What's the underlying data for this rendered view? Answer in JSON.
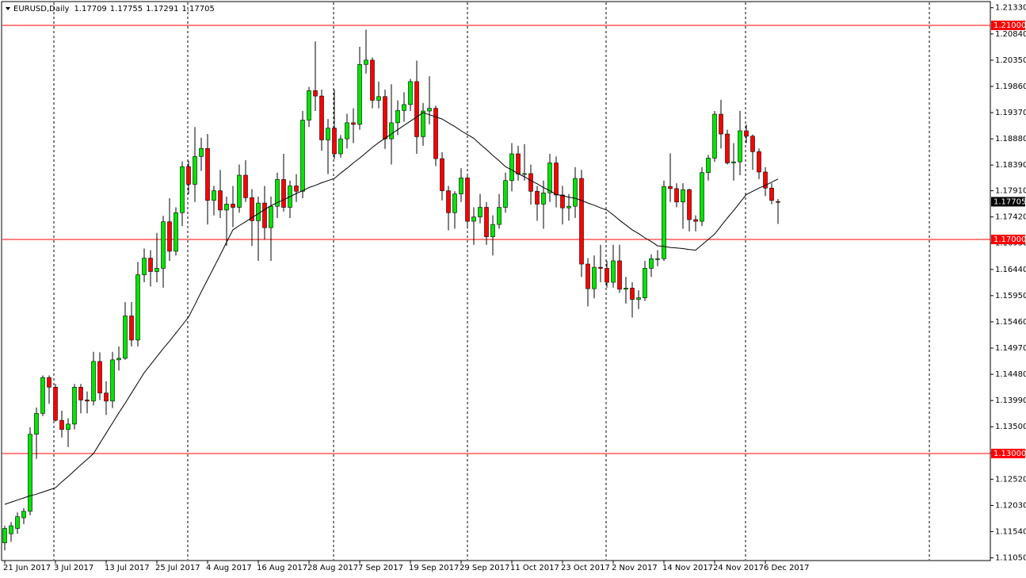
{
  "chart_data": {
    "type": "candlestick",
    "symbol": "EURUSD,Daily",
    "header_ohlc": [
      1.17709,
      1.17755,
      1.17291,
      1.17705
    ],
    "categories": [
      "21 Jun 2017",
      null,
      null,
      null,
      null,
      null,
      null,
      null,
      "3 Jul 2017",
      null,
      null,
      null,
      null,
      null,
      null,
      null,
      "13 Jul 2017",
      null,
      null,
      null,
      null,
      null,
      null,
      null,
      "25 Jul 2017",
      null,
      null,
      null,
      null,
      null,
      null,
      null,
      "4 Aug 2017",
      null,
      null,
      null,
      null,
      null,
      null,
      null,
      "16 Aug 2017",
      null,
      null,
      null,
      null,
      null,
      null,
      null,
      "28 Aug 2017",
      null,
      null,
      null,
      null,
      null,
      null,
      null,
      "7 Sep 2017",
      null,
      null,
      null,
      null,
      null,
      null,
      null,
      "19 Sep 2017",
      null,
      null,
      null,
      null,
      null,
      null,
      null,
      "29 Sep 2017",
      null,
      null,
      null,
      null,
      null,
      null,
      null,
      "11 Oct 2017",
      null,
      null,
      null,
      null,
      null,
      null,
      null,
      "23 Oct 2017",
      null,
      null,
      null,
      null,
      null,
      null,
      null,
      "2 Nov 2017",
      null,
      null,
      null,
      null,
      null,
      null,
      null,
      "14 Nov 2017",
      null,
      null,
      null,
      null,
      null,
      null,
      null,
      "24 Nov 2017",
      null,
      null,
      null,
      null,
      null,
      null,
      null,
      "6 Dec 2017",
      null,
      null
    ],
    "open": [
      1.1133,
      1.115,
      1.116,
      1.118,
      1.1192,
      1.1336,
      1.1375,
      1.1442,
      1.1424,
      1.1362,
      1.1345,
      1.1355,
      1.1424,
      1.14,
      1.1398,
      1.1472,
      1.1413,
      1.1398,
      1.1475,
      1.1478,
      1.1557,
      1.1512,
      1.1634,
      1.1665,
      1.164,
      1.1646,
      1.1733,
      1.1678,
      1.175,
      1.1836,
      1.1803,
      1.1855,
      1.187,
      1.1773,
      1.1791,
      1.1755,
      1.1766,
      1.176,
      1.182,
      1.1778,
      1.1735,
      1.1768,
      1.1722,
      1.1762,
      1.1812,
      1.176,
      1.18,
      1.179,
      1.1923,
      1.1978,
      1.1968,
      1.1886,
      1.1908,
      1.186,
      1.1888,
      1.1918,
      1.1915,
      1.2027,
      1.2035,
      1.196,
      1.1967,
      1.1888,
      1.1918,
      1.1941,
      1.1952,
      1.1995,
      1.1892,
      1.194,
      1.1945,
      1.1851,
      1.1791,
      1.175,
      1.1785,
      1.1815,
      1.1734,
      1.1742,
      1.176,
      1.1705,
      1.1728,
      1.176,
      1.181,
      1.186,
      1.1822,
      1.1823,
      1.179,
      1.1766,
      1.1787,
      1.1843,
      1.1783,
      1.1759,
      1.1762,
      1.1814,
      1.1654,
      1.1608,
      1.1648,
      1.1646,
      1.162,
      1.166,
      1.1607,
      1.1609,
      1.1588,
      1.1591,
      1.1646,
      1.1664,
      1.1664,
      1.1799,
      1.1795,
      1.177,
      1.1793,
      1.1737,
      1.1734,
      1.1825,
      1.1852,
      1.1934,
      1.1897,
      1.1843,
      1.1845,
      1.1903,
      1.1893,
      1.1864,
      1.1826,
      1.1796,
      1.17709
    ],
    "high": [
      1.1165,
      1.1172,
      1.119,
      1.1198,
      1.1349,
      1.1386,
      1.1446,
      1.1446,
      1.143,
      1.138,
      1.1366,
      1.143,
      1.143,
      1.1416,
      1.149,
      1.1489,
      1.1435,
      1.149,
      1.15,
      1.1583,
      1.1583,
      1.1658,
      1.1683,
      1.168,
      1.1712,
      1.1744,
      1.1777,
      1.176,
      1.1846,
      1.1847,
      1.191,
      1.189,
      1.1897,
      1.18,
      1.183,
      1.178,
      1.18,
      1.184,
      1.1848,
      1.1794,
      1.178,
      1.18,
      1.178,
      1.1825,
      1.186,
      1.181,
      1.1822,
      1.194,
      1.1985,
      1.207,
      1.198,
      1.1925,
      1.198,
      1.1895,
      1.1935,
      1.1945,
      1.206,
      1.2092,
      1.204,
      1.1995,
      1.198,
      1.199,
      1.196,
      1.1975,
      1.2,
      1.2034,
      1.1955,
      1.2005,
      1.195,
      1.1863,
      1.18,
      1.179,
      1.1833,
      1.1822,
      1.176,
      1.1785,
      1.177,
      1.1745,
      1.1785,
      1.1825,
      1.188,
      1.1875,
      1.1878,
      1.184,
      1.18,
      1.181,
      1.186,
      1.1855,
      1.18,
      1.1785,
      1.1835,
      1.183,
      1.1665,
      1.167,
      1.169,
      1.166,
      1.169,
      1.169,
      1.163,
      1.162,
      1.1605,
      1.166,
      1.1672,
      1.168,
      1.181,
      1.1861,
      1.1805,
      1.1805,
      1.1795,
      1.1745,
      1.1835,
      1.1858,
      1.194,
      1.1961,
      1.1905,
      1.188,
      1.194,
      1.1915,
      1.1896,
      1.187,
      1.1835,
      1.1805,
      1.17755
    ],
    "low": [
      1.1119,
      1.1135,
      1.115,
      1.1168,
      1.1185,
      1.129,
      1.137,
      1.1393,
      1.136,
      1.133,
      1.1312,
      1.1345,
      1.1375,
      1.1375,
      1.139,
      1.14,
      1.1372,
      1.1385,
      1.1455,
      1.1475,
      1.15,
      1.15,
      1.162,
      1.1612,
      1.162,
      1.161,
      1.166,
      1.167,
      1.1725,
      1.1785,
      1.177,
      1.1828,
      1.1728,
      1.1745,
      1.174,
      1.1688,
      1.1723,
      1.175,
      1.177,
      1.1688,
      1.166,
      1.17,
      1.166,
      1.174,
      1.1752,
      1.174,
      1.177,
      1.1777,
      1.191,
      1.194,
      1.1866,
      1.1822,
      1.185,
      1.1853,
      1.187,
      1.188,
      1.1905,
      1.201,
      1.1945,
      1.1945,
      1.1869,
      1.184,
      1.1895,
      1.192,
      1.194,
      1.186,
      1.1875,
      1.1915,
      1.1837,
      1.1773,
      1.1717,
      1.172,
      1.177,
      1.172,
      1.169,
      1.173,
      1.169,
      1.167,
      1.172,
      1.175,
      1.179,
      1.181,
      1.181,
      1.1765,
      1.1735,
      1.172,
      1.177,
      1.176,
      1.1728,
      1.1735,
      1.174,
      1.163,
      1.1575,
      1.159,
      1.162,
      1.161,
      1.161,
      1.16,
      1.158,
      1.1554,
      1.157,
      1.1585,
      1.163,
      1.165,
      1.166,
      1.177,
      1.176,
      1.172,
      1.1715,
      1.1715,
      1.1725,
      1.181,
      1.1845,
      1.187,
      1.184,
      1.181,
      1.182,
      1.188,
      1.183,
      1.1813,
      1.1781,
      1.1766,
      1.17291
    ],
    "close": [
      1.116,
      1.1165,
      1.1182,
      1.1192,
      1.1336,
      1.1375,
      1.1442,
      1.1424,
      1.1362,
      1.1345,
      1.1355,
      1.1424,
      1.14,
      1.1398,
      1.1472,
      1.1413,
      1.1398,
      1.1475,
      1.1478,
      1.1557,
      1.1512,
      1.1634,
      1.1665,
      1.164,
      1.1646,
      1.1733,
      1.1678,
      1.175,
      1.1836,
      1.1803,
      1.1855,
      1.187,
      1.1773,
      1.1791,
      1.1755,
      1.1766,
      1.176,
      1.182,
      1.1778,
      1.1735,
      1.1768,
      1.1722,
      1.1762,
      1.1812,
      1.176,
      1.18,
      1.179,
      1.1923,
      1.1978,
      1.1968,
      1.1886,
      1.1908,
      1.186,
      1.1888,
      1.1918,
      1.1915,
      1.2027,
      1.2035,
      1.196,
      1.1967,
      1.1888,
      1.1918,
      1.1941,
      1.1952,
      1.1995,
      1.1892,
      1.194,
      1.1945,
      1.1851,
      1.1791,
      1.175,
      1.1785,
      1.1815,
      1.1734,
      1.1742,
      1.176,
      1.1705,
      1.1728,
      1.176,
      1.181,
      1.186,
      1.1822,
      1.1823,
      1.179,
      1.1766,
      1.1787,
      1.1843,
      1.1783,
      1.1759,
      1.1762,
      1.1814,
      1.1654,
      1.1608,
      1.1648,
      1.1646,
      1.162,
      1.166,
      1.1607,
      1.1609,
      1.1588,
      1.1591,
      1.1646,
      1.1664,
      1.1664,
      1.1799,
      1.1795,
      1.177,
      1.1793,
      1.1737,
      1.1734,
      1.1825,
      1.1852,
      1.1934,
      1.1897,
      1.1843,
      1.1845,
      1.1903,
      1.1893,
      1.1864,
      1.1826,
      1.1796,
      1.1773,
      1.17705
    ],
    "up_color": "#00e600",
    "down_color": "#ff0000",
    "ma": {
      "color": "#000000",
      "values": [
        1.1205,
        1.1209,
        1.1213,
        1.1217,
        1.1221,
        1.1224,
        1.1228,
        1.1232,
        1.1236,
        1.1247,
        1.1257,
        1.1268,
        1.1279,
        1.1289,
        1.13,
        1.1319,
        1.1338,
        1.1357,
        1.1376,
        1.1394,
        1.1413,
        1.1432,
        1.1451,
        1.1466,
        1.1481,
        1.1496,
        1.151,
        1.1525,
        1.154,
        1.1555,
        1.1578,
        1.1602,
        1.1625,
        1.1648,
        1.1671,
        1.1695,
        1.1718,
        1.1726,
        1.1733,
        1.1741,
        1.1748,
        1.1756,
        1.1763,
        1.1769,
        1.1774,
        1.178,
        1.1786,
        1.1791,
        1.1797,
        1.1801,
        1.1806,
        1.181,
        1.1814,
        1.1824,
        1.1833,
        1.1843,
        1.1852,
        1.1862,
        1.1872,
        1.1881,
        1.1889,
        1.1897,
        1.1905,
        1.1913,
        1.1921,
        1.1929,
        1.1937,
        1.1933,
        1.1929,
        1.1925,
        1.1918,
        1.1911,
        1.1903,
        1.1896,
        1.1889,
        1.1878,
        1.1868,
        1.1857,
        1.1847,
        1.1836,
        1.183,
        1.1823,
        1.1817,
        1.181,
        1.1804,
        1.1797,
        1.1791,
        1.1784,
        1.1782,
        1.1779,
        1.1777,
        1.1773,
        1.1768,
        1.1764,
        1.1759,
        1.1755,
        1.1746,
        1.1736,
        1.1727,
        1.1718,
        1.1711,
        1.1703,
        1.1696,
        1.1688,
        1.1687,
        1.1685,
        1.1684,
        1.1683,
        1.1681,
        1.168,
        1.169,
        1.17,
        1.171,
        1.1725,
        1.174,
        1.1754,
        1.1769,
        1.1784,
        1.179,
        1.1796,
        1.1801,
        1.1807,
        1.1813
      ]
    },
    "ylim": [
      1.10985,
      1.21415
    ],
    "yticks": [
      {
        "value": 1.2133,
        "label": "1.21330"
      },
      {
        "value": 1.2084,
        "label": "1.20840"
      },
      {
        "value": 1.2035,
        "label": "1.20350"
      },
      {
        "value": 1.1986,
        "label": "1.19860"
      },
      {
        "value": 1.1937,
        "label": "1.19370"
      },
      {
        "value": 1.1888,
        "label": "1.18880"
      },
      {
        "value": 1.1839,
        "label": "1.18390"
      },
      {
        "value": 1.1791,
        "label": "1.17910"
      },
      {
        "value": 1.1742,
        "label": "1.17420"
      },
      {
        "value": 1.1693,
        "label": "1.16930"
      },
      {
        "value": 1.1644,
        "label": "1.16440"
      },
      {
        "value": 1.1595,
        "label": "1.15950"
      },
      {
        "value": 1.1546,
        "label": "1.15460"
      },
      {
        "value": 1.1497,
        "label": "1.14970"
      },
      {
        "value": 1.1448,
        "label": "1.14480"
      },
      {
        "value": 1.1399,
        "label": "1.13990"
      },
      {
        "value": 1.135,
        "label": "1.13500"
      },
      {
        "value": 1.1301,
        "label": "1.13010"
      },
      {
        "value": 1.1252,
        "label": "1.12520"
      },
      {
        "value": 1.1203,
        "label": "1.12030"
      },
      {
        "value": 1.1154,
        "label": "1.11540"
      },
      {
        "value": 1.1105,
        "label": "1.11050"
      }
    ],
    "hlines": [
      {
        "value": 1.21,
        "label": "1.21000",
        "color": "#ff0000"
      },
      {
        "value": 1.17,
        "label": "1.17000",
        "color": "#ff0000"
      },
      {
        "value": 1.13,
        "label": "1.13000",
        "color": "#ff0000"
      }
    ],
    "last_price": 1.17705
  }
}
